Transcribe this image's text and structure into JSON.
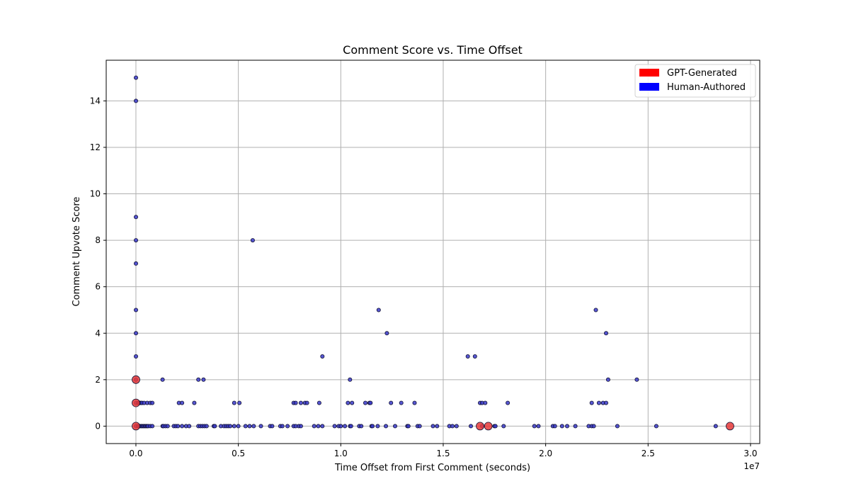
{
  "chart_data": {
    "type": "scatter",
    "title": "Comment Score vs. Time Offset",
    "xlabel": "Time Offset from First Comment (seconds)",
    "ylabel": "Comment Upvote Score",
    "x_offset_text": "1e7",
    "xlim": [
      -1450000,
      30450000
    ],
    "ylim": [
      -0.75,
      15.75
    ],
    "xticks": [
      0,
      5000000,
      10000000,
      15000000,
      20000000,
      25000000,
      30000000
    ],
    "xtick_labels": [
      "0.0",
      "0.5",
      "1.0",
      "1.5",
      "2.0",
      "2.5",
      "3.0"
    ],
    "yticks": [
      0,
      2,
      4,
      6,
      8,
      10,
      12,
      14
    ],
    "ytick_labels": [
      "0",
      "2",
      "4",
      "6",
      "8",
      "10",
      "12",
      "14"
    ],
    "grid": true,
    "legend_position": "top-right",
    "legend": [
      {
        "label": "GPT-Generated",
        "color": "#ff0000"
      },
      {
        "label": "Human-Authored",
        "color": "#0000ff"
      }
    ],
    "series": [
      {
        "name": "Human-Authored",
        "color": "#3a3acb",
        "points": [
          [
            0,
            15
          ],
          [
            0,
            14
          ],
          [
            0,
            9
          ],
          [
            0,
            8
          ],
          [
            0,
            7
          ],
          [
            0,
            5
          ],
          [
            0,
            4
          ],
          [
            0,
            3
          ],
          [
            0,
            2
          ],
          [
            0,
            1
          ],
          [
            0,
            0
          ],
          [
            100000,
            1
          ],
          [
            150000,
            1
          ],
          [
            200000,
            1
          ],
          [
            250000,
            1
          ],
          [
            300000,
            1
          ],
          [
            400000,
            1
          ],
          [
            550000,
            1
          ],
          [
            700000,
            1
          ],
          [
            800000,
            1
          ],
          [
            100000,
            0
          ],
          [
            150000,
            0
          ],
          [
            200000,
            0
          ],
          [
            250000,
            0
          ],
          [
            300000,
            0
          ],
          [
            350000,
            0
          ],
          [
            400000,
            0
          ],
          [
            450000,
            0
          ],
          [
            500000,
            0
          ],
          [
            550000,
            0
          ],
          [
            600000,
            0
          ],
          [
            700000,
            0
          ],
          [
            800000,
            0
          ],
          [
            1300000,
            2
          ],
          [
            3050000,
            2
          ],
          [
            3300000,
            2
          ],
          [
            2100000,
            1
          ],
          [
            2250000,
            1
          ],
          [
            2850000,
            1
          ],
          [
            1300000,
            0
          ],
          [
            1350000,
            0
          ],
          [
            1450000,
            0
          ],
          [
            1550000,
            0
          ],
          [
            1850000,
            0
          ],
          [
            1950000,
            0
          ],
          [
            2050000,
            0
          ],
          [
            2250000,
            0
          ],
          [
            2450000,
            0
          ],
          [
            2600000,
            0
          ],
          [
            3050000,
            0
          ],
          [
            3150000,
            0
          ],
          [
            3250000,
            0
          ],
          [
            3350000,
            0
          ],
          [
            3450000,
            0
          ],
          [
            3800000,
            0
          ],
          [
            3850000,
            0
          ],
          [
            4150000,
            0
          ],
          [
            4300000,
            0
          ],
          [
            4400000,
            0
          ],
          [
            4500000,
            0
          ],
          [
            4600000,
            0
          ],
          [
            4800000,
            1
          ],
          [
            5050000,
            1
          ],
          [
            4800000,
            0
          ],
          [
            5000000,
            0
          ],
          [
            5350000,
            0
          ],
          [
            5550000,
            0
          ],
          [
            5750000,
            0
          ],
          [
            6100000,
            0
          ],
          [
            6550000,
            0
          ],
          [
            6650000,
            0
          ],
          [
            7050000,
            0
          ],
          [
            7150000,
            0
          ],
          [
            7400000,
            0
          ],
          [
            7700000,
            0
          ],
          [
            7800000,
            0
          ],
          [
            7950000,
            0
          ],
          [
            8050000,
            0
          ],
          [
            5700000,
            8
          ],
          [
            7700000,
            1
          ],
          [
            7800000,
            1
          ],
          [
            8050000,
            1
          ],
          [
            8250000,
            1
          ],
          [
            8350000,
            1
          ],
          [
            8950000,
            1
          ],
          [
            8700000,
            0
          ],
          [
            8900000,
            0
          ],
          [
            9100000,
            0
          ],
          [
            9100000,
            3
          ],
          [
            9700000,
            0
          ],
          [
            9900000,
            0
          ],
          [
            10000000,
            0
          ],
          [
            10200000,
            0
          ],
          [
            10450000,
            0
          ],
          [
            10500000,
            0
          ],
          [
            10900000,
            0
          ],
          [
            11000000,
            0
          ],
          [
            11500000,
            0
          ],
          [
            11550000,
            0
          ],
          [
            11800000,
            0
          ],
          [
            12200000,
            0
          ],
          [
            12650000,
            0
          ],
          [
            13250000,
            0
          ],
          [
            13300000,
            0
          ],
          [
            13750000,
            0
          ],
          [
            13850000,
            0
          ],
          [
            10450000,
            2
          ],
          [
            10350000,
            1
          ],
          [
            10550000,
            1
          ],
          [
            11200000,
            1
          ],
          [
            11400000,
            1
          ],
          [
            11450000,
            1
          ],
          [
            12450000,
            1
          ],
          [
            12950000,
            1
          ],
          [
            13600000,
            1
          ],
          [
            11850000,
            5
          ],
          [
            12250000,
            4
          ],
          [
            14500000,
            0
          ],
          [
            14700000,
            0
          ],
          [
            15300000,
            0
          ],
          [
            15450000,
            0
          ],
          [
            15650000,
            0
          ],
          [
            16350000,
            0
          ],
          [
            16900000,
            0
          ],
          [
            17500000,
            0
          ],
          [
            17550000,
            0
          ],
          [
            17950000,
            0
          ],
          [
            16200000,
            3
          ],
          [
            16550000,
            3
          ],
          [
            16800000,
            1
          ],
          [
            16900000,
            1
          ],
          [
            17050000,
            1
          ],
          [
            18150000,
            1
          ],
          [
            19450000,
            0
          ],
          [
            19650000,
            0
          ],
          [
            20350000,
            0
          ],
          [
            20450000,
            0
          ],
          [
            20800000,
            0
          ],
          [
            21050000,
            0
          ],
          [
            21450000,
            0
          ],
          [
            22100000,
            0
          ],
          [
            22250000,
            0
          ],
          [
            22350000,
            0
          ],
          [
            22250000,
            1
          ],
          [
            22600000,
            1
          ],
          [
            22800000,
            1
          ],
          [
            22950000,
            1
          ],
          [
            22450000,
            5
          ],
          [
            22950000,
            4
          ],
          [
            23050000,
            2
          ],
          [
            24450000,
            2
          ],
          [
            23500000,
            0
          ],
          [
            25400000,
            0
          ],
          [
            28300000,
            0
          ]
        ]
      },
      {
        "name": "GPT-Generated",
        "color": "#e83a3a",
        "points": [
          [
            0,
            2
          ],
          [
            0,
            1
          ],
          [
            0,
            0
          ],
          [
            16800000,
            0
          ],
          [
            17200000,
            0
          ],
          [
            29000000,
            0
          ]
        ]
      }
    ]
  }
}
